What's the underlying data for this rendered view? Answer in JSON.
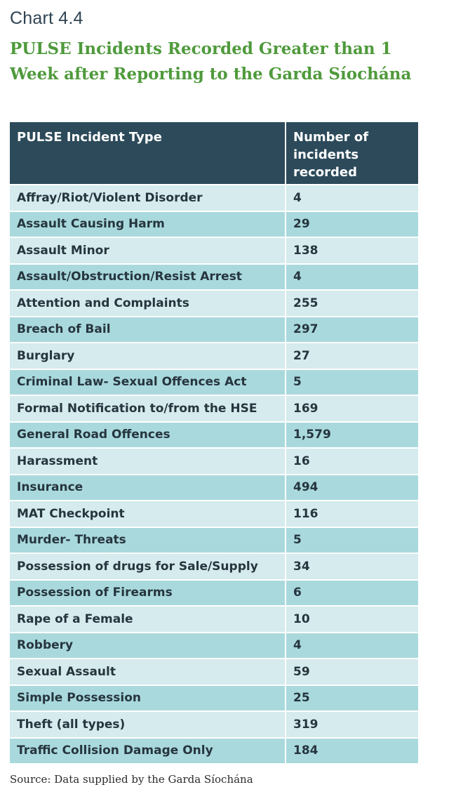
{
  "chart_label": "Chart 4.4",
  "title": "PULSE Incidents Recorded Greater than 1 Week after Reporting to the Garda Síochána",
  "table": {
    "headers": [
      "PULSE Incident Type",
      "Number of incidents recorded"
    ],
    "rows": [
      [
        "Affray/Riot/Violent Disorder",
        "4"
      ],
      [
        "Assault Causing Harm",
        "29"
      ],
      [
        "Assault Minor",
        "138"
      ],
      [
        "Assault/Obstruction/Resist Arrest",
        "4"
      ],
      [
        "Attention and Complaints",
        "255"
      ],
      [
        "Breach of Bail",
        "297"
      ],
      [
        "Burglary",
        "27"
      ],
      [
        "Criminal Law- Sexual Offences Act",
        "5"
      ],
      [
        "Formal Notification to/from the HSE",
        "169"
      ],
      [
        "General Road Offences",
        "1,579"
      ],
      [
        "Harassment",
        "16"
      ],
      [
        "Insurance",
        "494"
      ],
      [
        "MAT Checkpoint",
        "116"
      ],
      [
        "Murder- Threats",
        "5"
      ],
      [
        "Possession of drugs for Sale/Supply",
        "34"
      ],
      [
        "Possession of Firearms",
        "6"
      ],
      [
        "Rape of a Female",
        "10"
      ],
      [
        "Robbery",
        "4"
      ],
      [
        "Sexual Assault",
        "59"
      ],
      [
        "Simple Possession",
        "25"
      ],
      [
        "Theft (all types)",
        "319"
      ],
      [
        "Traffic Collision Damage Only",
        "184"
      ]
    ]
  },
  "source": "Source: Data supplied by the Garda Síochána",
  "colors": {
    "header_bg": "#2c4a5a",
    "title": "#4f9a3c",
    "row_light": "#d5ebed",
    "row_dark": "#a9d9dd"
  }
}
